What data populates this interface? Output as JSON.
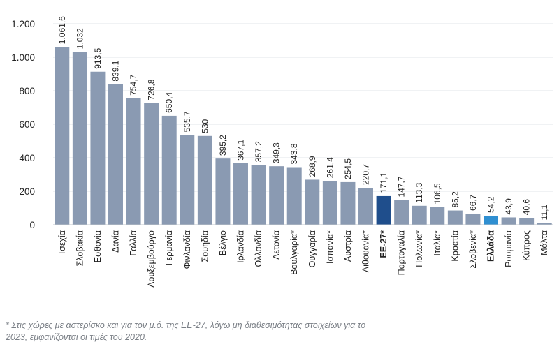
{
  "chart_data": {
    "type": "bar",
    "categories": [
      "Τσεχία",
      "Σλοβακία",
      "Εσθονία",
      "Δανία",
      "Γαλλία",
      "Λουξεμβούργο",
      "Γερμανία",
      "Φινλανδία",
      "Σουηδία",
      "Βέλγιο",
      "Ιρλανδία",
      "Ολλανδία",
      "Λετονία",
      "Βουλγαρία*",
      "Ουγγαρία",
      "Ισπανία*",
      "Αυστρία",
      "Λιθουανία*",
      "ΕΕ-27*",
      "Πορτογαλία",
      "Πολωνία*",
      "Ιταλία*",
      "Κροατία",
      "Σλοβενία*",
      "Ελλάδα",
      "Ρουμανία",
      "Κύπρος",
      "Μάλτα"
    ],
    "values": [
      1061.6,
      1032,
      913.5,
      839.1,
      754.7,
      726.8,
      650.4,
      535.7,
      530,
      395.2,
      367.1,
      357.2,
      349.3,
      343.8,
      268.9,
      261.4,
      254.5,
      220.7,
      171.1,
      147.7,
      113.3,
      106.5,
      85.2,
      66.7,
      54.2,
      43.9,
      40.6,
      11.1
    ],
    "value_labels": [
      "1.061,6",
      "1.032",
      "913,5",
      "839,1",
      "754,7",
      "726,8",
      "650,4",
      "535,7",
      "530",
      "395,2",
      "367,1",
      "357,2",
      "349,3",
      "343,8",
      "268,9",
      "261,4",
      "254,5",
      "220,7",
      "171,1",
      "147,7",
      "113,3",
      "106,5",
      "85,2",
      "66,7",
      "54,2",
      "43,9",
      "40,6",
      "11,1"
    ],
    "highlight": {
      "ΕΕ-27*": "#1f4e8c",
      "Ελλάδα": "#2f8fd1"
    },
    "ylim": [
      0,
      1200
    ],
    "yticks": [
      0,
      200,
      400,
      600,
      800,
      1000,
      1200
    ],
    "ytick_labels": [
      "0",
      "200",
      "400",
      "600",
      "800",
      "1.000",
      "1.200"
    ],
    "grid": true,
    "title": "",
    "xlabel": "",
    "ylabel": ""
  },
  "colors": {
    "bar": "#8a9ab2",
    "eu": "#1f4e8c",
    "greece": "#2f8fd1",
    "grid": "#e2e5ea",
    "axis": "#555555",
    "text": "#222222"
  },
  "footnote": {
    "line1": "* Στις χώρες με αστερίσκο και για τον μ.ό. της ΕΕ-27, λόγω μη διαθεσιμότητας στοιχείων για το",
    "line2": "2023, εμφανίζονται οι τιμές του 2020."
  }
}
